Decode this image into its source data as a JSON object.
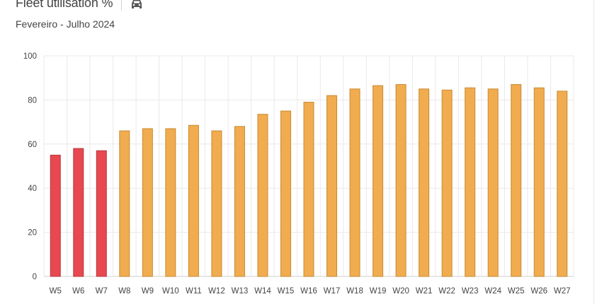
{
  "header": {
    "title": "Fleet utilisation %",
    "subtitle": "Fevereiro - Julho 2024",
    "icon": "car-icon"
  },
  "colors": {
    "low": "#e8484f",
    "low_stroke": "#b9373d",
    "normal": "#f0ac4e",
    "normal_stroke": "#c98a32",
    "grid": "#e9e9e9",
    "axis": "#cccccc"
  },
  "chart_data": {
    "type": "bar",
    "title": "Fleet utilisation %",
    "subtitle": "Fevereiro - Julho 2024",
    "xlabel": "",
    "ylabel": "",
    "ylim": [
      0,
      100
    ],
    "yticks": [
      0,
      20,
      40,
      60,
      80,
      100
    ],
    "grid": true,
    "categories": [
      "W5",
      "W6",
      "W7",
      "W8",
      "W9",
      "W10",
      "W11",
      "W12",
      "W13",
      "W14",
      "W15",
      "W16",
      "W17",
      "W18",
      "W19",
      "W20",
      "W21",
      "W22",
      "W23",
      "W24",
      "W25",
      "W26",
      "W27"
    ],
    "values": [
      55,
      58,
      57,
      66,
      67,
      67,
      68.5,
      66,
      68,
      73.5,
      75,
      79,
      82,
      85,
      86.5,
      87,
      85,
      84.5,
      85.5,
      85,
      87,
      85.5,
      84
    ],
    "highlight": [
      "low",
      "low",
      "low",
      "normal",
      "normal",
      "normal",
      "normal",
      "normal",
      "normal",
      "normal",
      "normal",
      "normal",
      "normal",
      "normal",
      "normal",
      "normal",
      "normal",
      "normal",
      "normal",
      "normal",
      "normal",
      "normal",
      "normal"
    ]
  }
}
